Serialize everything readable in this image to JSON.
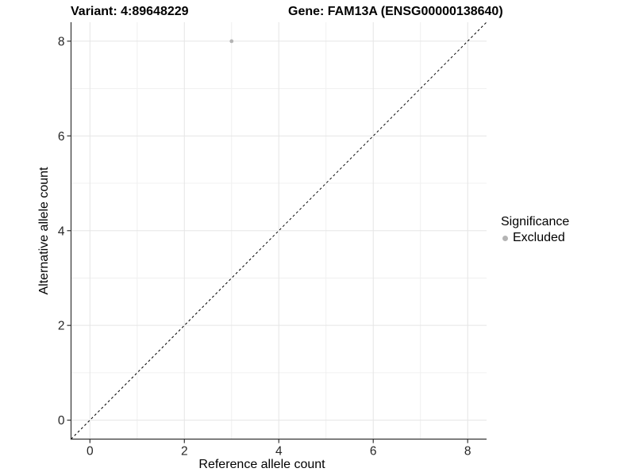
{
  "title": {
    "variant": "Variant: 4:89648229",
    "gene": "Gene: FAM13A (ENSG00000138640)"
  },
  "axes": {
    "x_label": "Reference allele count",
    "y_label": "Alternative allele count"
  },
  "legend": {
    "title": "Significance",
    "items": [
      {
        "label": "Excluded",
        "color": "#b4b4b4"
      }
    ]
  },
  "colors": {
    "background": "#ffffff",
    "axis_line": "#333333",
    "tick_label": "#262626",
    "grid_major": "#e5e5e5",
    "grid_minor": "#f0f0f0",
    "reference_line": "#000000",
    "point": "#b4b4b4"
  },
  "chart_data": {
    "type": "scatter",
    "title": "Variant: 4:89648229        Gene: FAM13A (ENSG00000138640)",
    "xlabel": "Reference allele count",
    "ylabel": "Alternative allele count",
    "xlim": [
      -0.4,
      8.4
    ],
    "ylim": [
      -0.4,
      8.4
    ],
    "x_ticks": [
      0,
      2,
      4,
      6,
      8
    ],
    "y_ticks": [
      0,
      2,
      4,
      6,
      8
    ],
    "x_minor_breaks": [
      1,
      3,
      5,
      7
    ],
    "y_minor_breaks": [
      1,
      3,
      5,
      7
    ],
    "grid": true,
    "legend_position": "right",
    "series": [
      {
        "name": "Excluded",
        "color": "#b4b4b4",
        "points": [
          {
            "x": 3,
            "y": 8
          }
        ]
      }
    ],
    "reference_line": {
      "type": "identity",
      "style": "dashed",
      "from": [
        -0.4,
        -0.4
      ],
      "to": [
        8.4,
        8.4
      ],
      "color": "#000000"
    }
  }
}
